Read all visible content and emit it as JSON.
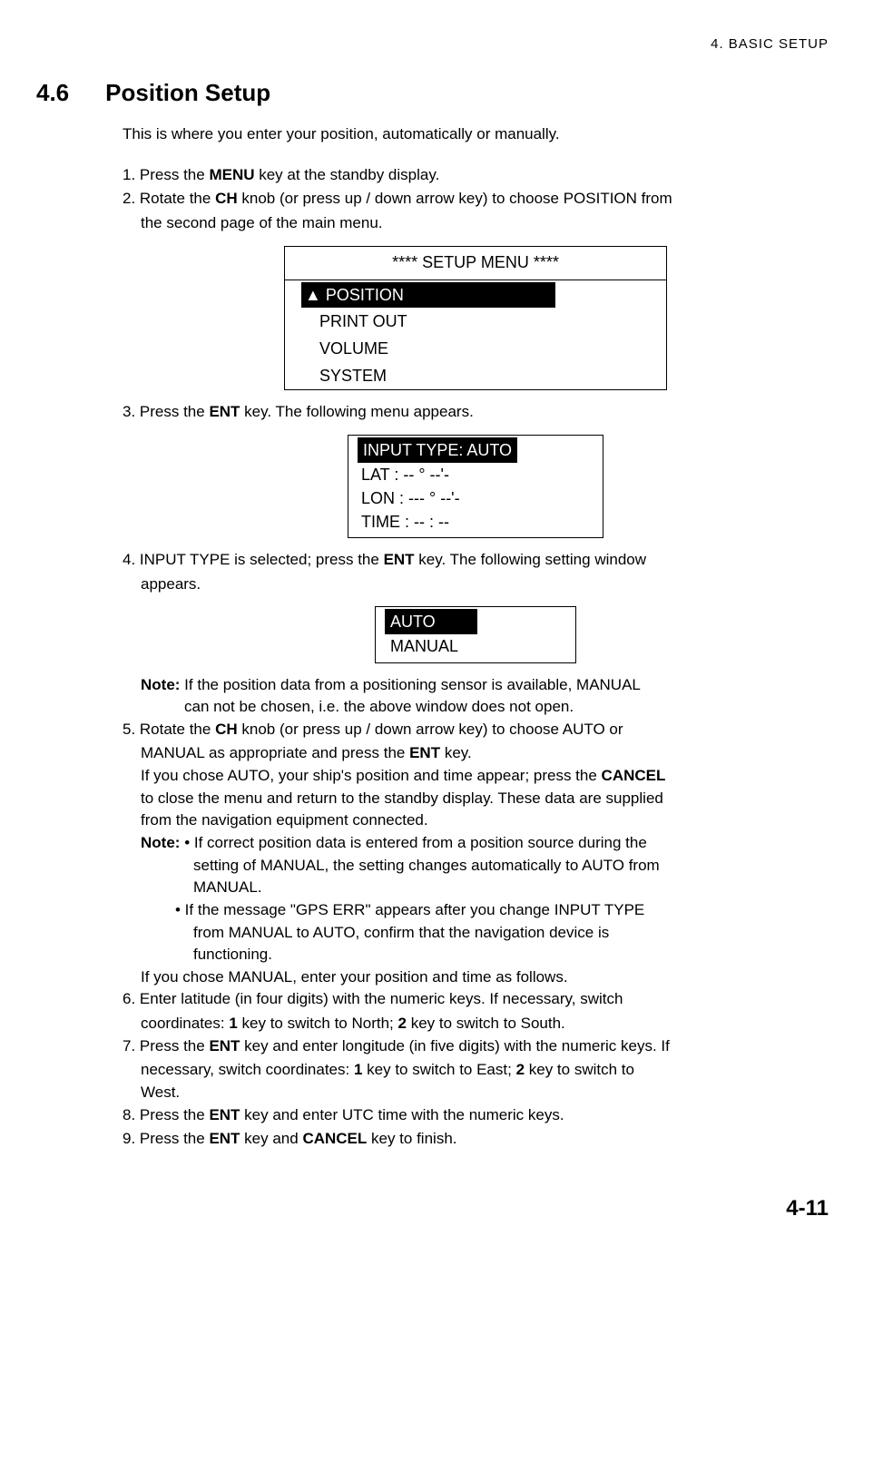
{
  "header": "4.  BASIC  SETUP",
  "section_number": "4.6",
  "section_title": "Position Setup",
  "intro": "This is where you enter your position, automatically or manually.",
  "step1_a": "1. Press the ",
  "step1_b": "MENU",
  "step1_c": " key at the standby display.",
  "step2_a": "2. Rotate the ",
  "step2_b": "CH",
  "step2_c": " knob (or press up / down arrow key) to choose POSITION from",
  "step2_d": "the second page of the main menu.",
  "setup_menu_title": "**** SETUP MENU ****",
  "menu_item1": "▲ POSITION",
  "menu_item2": "PRINT OUT",
  "menu_item3": "VOLUME",
  "menu_item4": "SYSTEM",
  "step3_a": "3. Press the ",
  "step3_b": "ENT",
  "step3_c": " key. The following menu appears.",
  "input_type_hdr": "INPUT TYPE: AUTO",
  "lat_row": "LAT   :  -- ° --'-",
  "lon_row": "LON  : --- ° --'-",
  "time_row": "TIME :  -- : --",
  "step4_a": "4. INPUT TYPE is selected; press the ",
  "step4_b": "ENT",
  "step4_c": " key. The following setting window",
  "step4_d": "appears.",
  "auto_label": "AUTO",
  "manual_label": "MANUAL",
  "note1_label": "Note:",
  "note1_a": "  If the position data from a positioning sensor is available, MANUAL",
  "note1_b": "can not be chosen, i.e. the above window does not open.",
  "step5_a": "5. Rotate the ",
  "step5_b": "CH",
  "step5_c": " knob (or press up / down arrow key) to choose AUTO or",
  "step5_d": "MANUAL as appropriate and press the ",
  "step5_e": "ENT",
  "step5_f": " key.",
  "step5_g": "If you chose AUTO, your ship's position and time appear; press the ",
  "step5_h": "CANCEL",
  "step5_i": "to close the menu and return to the standby display. These data are supplied",
  "step5_j": "from the navigation equipment connected.",
  "note2_label": "Note:",
  "note2_a": "• If correct position data is entered from a position source during the",
  "note2_b": "setting of MANUAL, the setting changes automatically to AUTO from",
  "note2_c": "MANUAL.",
  "note2_d": "• If the message \"GPS ERR\" appears after you change INPUT TYPE",
  "note2_e": "from MANUAL to AUTO, confirm that the navigation device is",
  "note2_f": "functioning.",
  "step5_k": "If you chose MANUAL, enter your position and time as follows.",
  "step6_a": "6. Enter latitude (in four digits) with the numeric keys. If necessary, switch",
  "step6_b": "coordinates: ",
  "step6_c": "1",
  "step6_d": " key to switch to North; ",
  "step6_e": "2",
  "step6_f": " key to switch to South.",
  "step7_a": "7. Press the ",
  "step7_b": "ENT",
  "step7_c": " key and enter longitude (in five digits) with the numeric keys. If",
  "step7_d": "necessary, switch coordinates: ",
  "step7_e": "1",
  "step7_f": " key to switch to East; ",
  "step7_g": "2",
  "step7_h": " key to switch to",
  "step7_i": "West.",
  "step8_a": "8. Press the ",
  "step8_b": "ENT",
  "step8_c": " key and enter UTC time with the numeric keys.",
  "step9_a": "9. Press the ",
  "step9_b": "ENT",
  "step9_c": " key and ",
  "step9_d": "CANCEL",
  "step9_e": " key to finish.",
  "page_num": "4-11"
}
